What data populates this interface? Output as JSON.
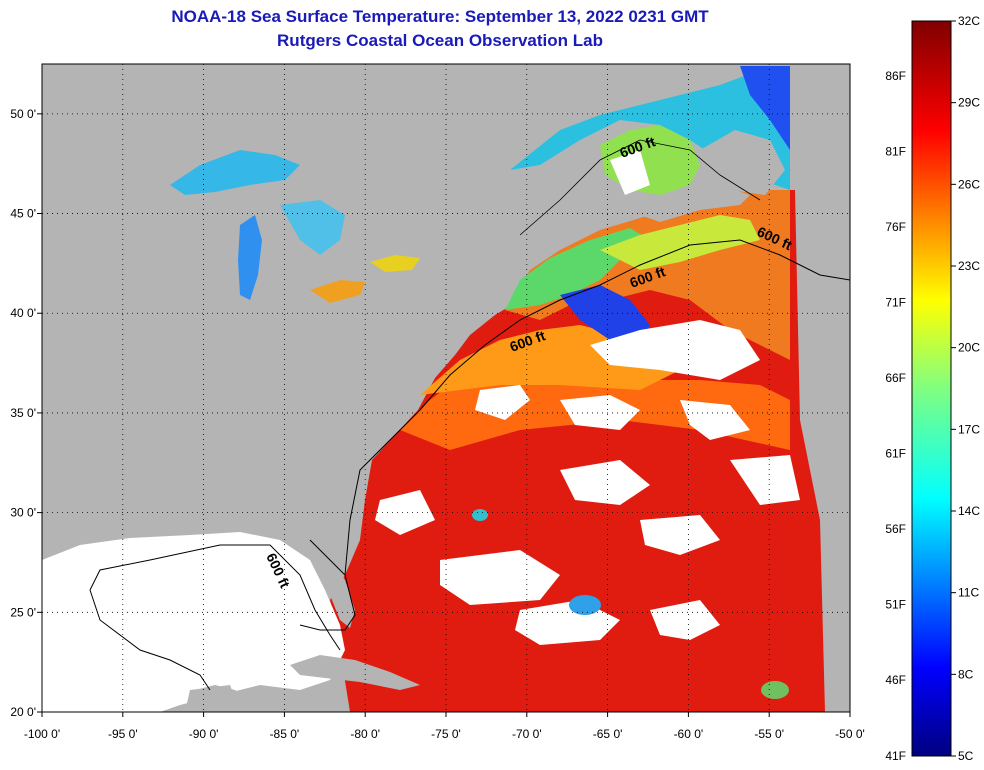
{
  "header": {
    "title": "NOAA-18 Sea Surface Temperature:  September 13, 2022 0231 GMT",
    "subtitle": "Rutgers Coastal Ocean Observation Lab"
  },
  "map": {
    "lon_range": [
      -100,
      -50
    ],
    "lat_range": [
      20,
      52.5
    ],
    "lon_ticks": [
      {
        "value": -100,
        "label": "-100 0'"
      },
      {
        "value": -95,
        "label": "-95 0'"
      },
      {
        "value": -90,
        "label": "-90 0'"
      },
      {
        "value": -85,
        "label": "-85 0'"
      },
      {
        "value": -80,
        "label": "-80 0'"
      },
      {
        "value": -75,
        "label": "-75 0'"
      },
      {
        "value": -70,
        "label": "-70 0'"
      },
      {
        "value": -65,
        "label": "-65 0'"
      },
      {
        "value": -60,
        "label": "-60 0'"
      },
      {
        "value": -55,
        "label": "-55 0'"
      },
      {
        "value": -50,
        "label": "-50 0'"
      }
    ],
    "lat_ticks": [
      {
        "value": 50,
        "label": "50 0'"
      },
      {
        "value": 45,
        "label": "45 0'"
      },
      {
        "value": 40,
        "label": "40 0'"
      },
      {
        "value": 35,
        "label": "35 0'"
      },
      {
        "value": 30,
        "label": "30 0'"
      },
      {
        "value": 25,
        "label": "25 0'"
      },
      {
        "value": 20,
        "label": "20 0'"
      }
    ],
    "contour_label": "600 ft",
    "colors": {
      "land": "#b4b4b4",
      "cloud": "#ffffff",
      "grid": "#000000"
    }
  },
  "colorbar": {
    "celsius_labels": [
      "32C",
      "29C",
      "26C",
      "23C",
      "20C",
      "17C",
      "14C",
      "11C",
      "8C",
      "5C"
    ],
    "fahrenheit_labels": [
      "86F",
      "81F",
      "76F",
      "71F",
      "66F",
      "61F",
      "56F",
      "51F",
      "46F",
      "41F"
    ],
    "range_c": [
      5,
      32
    ]
  }
}
